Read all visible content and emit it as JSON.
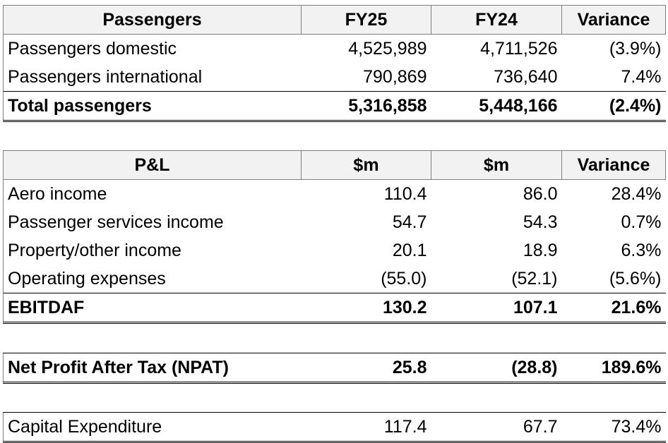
{
  "passengers": {
    "headers": [
      "Passengers",
      "FY25",
      "FY24",
      "Variance"
    ],
    "rows": [
      [
        "Passengers domestic",
        "4,525,989",
        "4,711,526",
        "(3.9%)"
      ],
      [
        "Passengers international",
        "790,869",
        "736,640",
        "7.4%"
      ]
    ],
    "total": [
      "Total passengers",
      "5,316,858",
      "5,448,166",
      "(2.4%)"
    ]
  },
  "pl": {
    "headers": [
      "P&L",
      "$m",
      "$m",
      "Variance"
    ],
    "rows": [
      [
        "Aero income",
        "110.4",
        "86.0",
        "28.4%"
      ],
      [
        "Passenger services income",
        "54.7",
        "54.3",
        "0.7%"
      ],
      [
        "Property/other income",
        "20.1",
        "18.9",
        "6.3%"
      ],
      [
        "Operating expenses",
        "(55.0)",
        "(52.1)",
        "(5.6%)"
      ]
    ],
    "total": [
      "EBITDAF",
      "130.2",
      "107.1",
      "21.6%"
    ]
  },
  "npat": [
    "Net Profit After Tax (NPAT)",
    "25.8",
    "(28.8)",
    "189.6%"
  ],
  "capex": [
    "Capital Expenditure",
    "117.4",
    "67.7",
    "73.4%"
  ]
}
